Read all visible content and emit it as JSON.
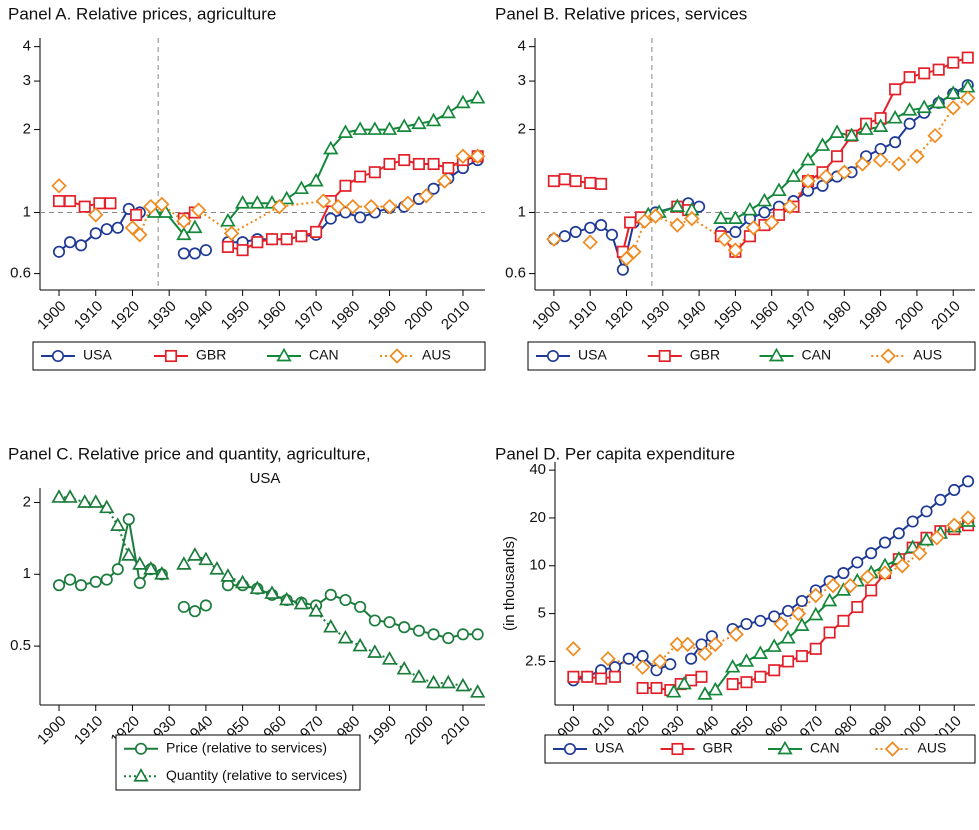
{
  "chart_data": [
    {
      "type": "line",
      "title": [
        "Panel A. Relative prices, agriculture"
      ],
      "ylog": true,
      "xlim": [
        1897,
        2016
      ],
      "ylim": [
        0.55,
        4.3
      ],
      "xticks": [
        1900,
        1910,
        1920,
        1930,
        1940,
        1950,
        1960,
        1970,
        1980,
        1990,
        2000,
        2010
      ],
      "yticks": [
        0.6,
        1,
        2,
        3,
        4
      ],
      "vline": 1927,
      "hline": 1,
      "legend": "bottom",
      "legend_columns": 4,
      "series": [
        {
          "name": "USA",
          "color": "#1f3a96",
          "marker": "circle",
          "line_style": "solid",
          "x": [
            1900,
            1903,
            1906,
            1910,
            1913,
            1916,
            1919,
            1922,
            1925,
            1934,
            1937,
            1940,
            1943,
            1946,
            1950,
            1954,
            1958,
            1962,
            1966,
            1970,
            1974,
            1978,
            1982,
            1986,
            1990,
            1994,
            1998,
            2002,
            2006,
            2010,
            2014
          ],
          "values": [
            0.72,
            0.78,
            0.76,
            0.84,
            0.87,
            0.88,
            1.03,
            1.0,
            null,
            0.71,
            0.71,
            0.73,
            null,
            0.78,
            0.78,
            0.8,
            0.8,
            0.8,
            0.82,
            0.83,
            0.95,
            1.0,
            0.96,
            1.0,
            1.04,
            1.05,
            1.12,
            1.22,
            1.33,
            1.45,
            1.55
          ]
        },
        {
          "name": "GBR",
          "color": "#e3202a",
          "marker": "square",
          "line_style": "solid",
          "x": [
            1900,
            1903,
            1907,
            1911,
            1914,
            1918,
            1921,
            1924,
            1927,
            1934,
            1937,
            1940,
            1946,
            1950,
            1954,
            1958,
            1962,
            1966,
            1970,
            1974,
            1978,
            1982,
            1986,
            1990,
            1994,
            1998,
            2002,
            2006,
            2010,
            2014
          ],
          "values": [
            1.1,
            1.1,
            1.05,
            1.08,
            1.08,
            null,
            0.98,
            null,
            null,
            0.95,
            1.0,
            null,
            0.75,
            0.73,
            0.78,
            0.8,
            0.8,
            0.82,
            0.85,
            1.1,
            1.25,
            1.35,
            1.4,
            1.5,
            1.55,
            1.5,
            1.5,
            1.45,
            1.55,
            1.6
          ]
        },
        {
          "name": "CAN",
          "color": "#14883a",
          "marker": "triangle",
          "line_style": "solid",
          "x": [
            1926,
            1929,
            1934,
            1937,
            1940,
            1946,
            1950,
            1954,
            1958,
            1962,
            1966,
            1970,
            1974,
            1978,
            1982,
            1986,
            1990,
            1994,
            1998,
            2002,
            2006,
            2010,
            2014
          ],
          "values": [
            1.0,
            1.0,
            0.83,
            0.88,
            null,
            0.93,
            1.08,
            1.08,
            1.08,
            1.12,
            1.22,
            1.3,
            1.7,
            1.95,
            2.0,
            2.0,
            2.0,
            2.05,
            2.1,
            2.15,
            2.3,
            2.5,
            2.6
          ]
        },
        {
          "name": "AUS",
          "color": "#f08a1e",
          "marker": "diamond",
          "line_style": "dotted",
          "x": [
            1900,
            1905,
            1910,
            1915,
            1920,
            1922,
            1925,
            1928,
            1934,
            1938,
            1947,
            1960,
            1972,
            1976,
            1980,
            1985,
            1990,
            1995,
            2000,
            2005,
            2010,
            2014
          ],
          "values": [
            1.25,
            null,
            0.98,
            null,
            0.88,
            0.83,
            1.05,
            1.07,
            0.93,
            1.02,
            0.84,
            1.05,
            1.1,
            1.05,
            1.05,
            1.05,
            1.05,
            1.08,
            1.15,
            1.3,
            1.6,
            1.6
          ]
        }
      ]
    },
    {
      "type": "line",
      "title": [
        "Panel B. Relative prices, services"
      ],
      "ylog": true,
      "xlim": [
        1897,
        2016
      ],
      "ylim": [
        0.55,
        4.3
      ],
      "xticks": [
        1900,
        1910,
        1920,
        1930,
        1940,
        1950,
        1960,
        1970,
        1980,
        1990,
        2000,
        2010
      ],
      "yticks": [
        0.6,
        1,
        2,
        3,
        4
      ],
      "vline": 1927,
      "hline": 1,
      "legend": "bottom",
      "legend_columns": 4,
      "series": [
        {
          "name": "USA",
          "color": "#1f3a96",
          "marker": "circle",
          "line_style": "solid",
          "x": [
            1900,
            1903,
            1906,
            1910,
            1913,
            1916,
            1919,
            1922,
            1925,
            1928,
            1934,
            1937,
            1940,
            1943,
            1946,
            1950,
            1954,
            1958,
            1962,
            1966,
            1970,
            1974,
            1978,
            1982,
            1986,
            1990,
            1994,
            1998,
            2002,
            2006,
            2010,
            2014
          ],
          "values": [
            0.8,
            0.82,
            0.85,
            0.88,
            0.9,
            0.83,
            0.62,
            0.92,
            0.95,
            1.0,
            1.05,
            1.08,
            1.05,
            null,
            0.85,
            0.85,
            0.95,
            1.0,
            1.05,
            1.1,
            1.2,
            1.25,
            1.35,
            1.4,
            1.6,
            1.7,
            1.8,
            2.1,
            2.3,
            2.5,
            2.7,
            2.9
          ]
        },
        {
          "name": "GBR",
          "color": "#e3202a",
          "marker": "square",
          "line_style": "solid",
          "x": [
            1900,
            1903,
            1906,
            1910,
            1913,
            1916,
            1919,
            1921,
            1924,
            1927,
            1934,
            1937,
            1940,
            1946,
            1950,
            1954,
            1958,
            1962,
            1966,
            1970,
            1974,
            1978,
            1982,
            1986,
            1990,
            1994,
            1998,
            2002,
            2006,
            2010,
            2014
          ],
          "values": [
            1.3,
            1.32,
            1.3,
            1.28,
            1.27,
            null,
            0.72,
            0.92,
            0.96,
            null,
            1.05,
            1.02,
            null,
            0.82,
            0.72,
            0.82,
            0.9,
            0.98,
            1.05,
            1.3,
            1.4,
            1.6,
            1.9,
            2.1,
            2.2,
            2.8,
            3.1,
            3.2,
            3.3,
            3.5,
            3.65
          ]
        },
        {
          "name": "CAN",
          "color": "#14883a",
          "marker": "triangle",
          "line_style": "solid",
          "x": [
            1926,
            1929,
            1934,
            1938,
            1941,
            1946,
            1950,
            1954,
            1958,
            1962,
            1966,
            1970,
            1974,
            1978,
            1982,
            1986,
            1990,
            1994,
            1998,
            2002,
            2006,
            2010,
            2014
          ],
          "values": [
            0.98,
            1.0,
            1.05,
            1.02,
            null,
            0.95,
            0.95,
            1.02,
            1.1,
            1.2,
            1.35,
            1.55,
            1.75,
            1.95,
            1.9,
            2.0,
            2.05,
            2.2,
            2.35,
            2.4,
            2.5,
            2.7,
            2.85
          ]
        },
        {
          "name": "AUS",
          "color": "#f08a1e",
          "marker": "diamond",
          "line_style": "dotted",
          "x": [
            1900,
            1905,
            1910,
            1915,
            1920,
            1922,
            1925,
            1928,
            1934,
            1938,
            1947,
            1950,
            1955,
            1960,
            1965,
            1970,
            1975,
            1980,
            1985,
            1990,
            1995,
            2000,
            2005,
            2010,
            2014
          ],
          "values": [
            0.8,
            null,
            0.78,
            null,
            0.68,
            0.72,
            0.93,
            0.97,
            0.9,
            0.95,
            0.8,
            0.73,
            0.88,
            0.92,
            1.05,
            1.3,
            1.35,
            1.4,
            1.5,
            1.55,
            1.5,
            1.6,
            1.9,
            2.4,
            2.6
          ]
        }
      ]
    },
    {
      "type": "line",
      "title": [
        "Panel C. Relative price and quantity, agriculture,",
        "USA"
      ],
      "ylog": true,
      "xlim": [
        1897,
        2016
      ],
      "ylim": [
        0.3,
        2.3
      ],
      "xticks": [
        1900,
        1910,
        1920,
        1930,
        1940,
        1950,
        1960,
        1970,
        1980,
        1990,
        2000,
        2010
      ],
      "yticks": [
        0.5,
        1,
        2
      ],
      "legend": "bottom",
      "legend_columns": 1,
      "series": [
        {
          "name": "Price (relative to services)",
          "color": "#1b7c3c",
          "marker": "circle",
          "line_style": "solid",
          "x": [
            1900,
            1903,
            1906,
            1910,
            1913,
            1916,
            1919,
            1922,
            1925,
            1928,
            1931,
            1934,
            1937,
            1940,
            1943,
            1946,
            1950,
            1954,
            1958,
            1962,
            1966,
            1970,
            1974,
            1978,
            1982,
            1986,
            1990,
            1994,
            1998,
            2002,
            2006,
            2010,
            2014
          ],
          "values": [
            0.9,
            0.95,
            0.9,
            0.93,
            0.95,
            1.05,
            1.7,
            0.92,
            1.05,
            1.0,
            null,
            0.73,
            0.7,
            0.74,
            null,
            0.9,
            0.9,
            0.87,
            0.82,
            0.78,
            0.76,
            0.74,
            0.82,
            0.78,
            0.73,
            0.64,
            0.63,
            0.6,
            0.58,
            0.56,
            0.54,
            0.56,
            0.56
          ]
        },
        {
          "name": "Quantity (relative to services)",
          "color": "#1b7c3c",
          "marker": "triangle",
          "line_style": "dotted",
          "x": [
            1900,
            1903,
            1907,
            1910,
            1913,
            1916,
            1919,
            1922,
            1925,
            1928,
            1931,
            1934,
            1937,
            1940,
            1943,
            1946,
            1950,
            1954,
            1958,
            1962,
            1966,
            1970,
            1974,
            1978,
            1982,
            1986,
            1990,
            1994,
            1998,
            2002,
            2006,
            2010,
            2014
          ],
          "values": [
            2.1,
            2.1,
            2.0,
            2.0,
            1.9,
            1.6,
            1.2,
            1.1,
            1.05,
            1.0,
            null,
            1.1,
            1.2,
            1.15,
            1.05,
            0.98,
            0.92,
            0.87,
            0.83,
            0.78,
            0.75,
            0.7,
            0.6,
            0.54,
            0.5,
            0.47,
            0.44,
            0.4,
            0.37,
            0.35,
            0.35,
            0.34,
            0.32
          ]
        }
      ]
    },
    {
      "type": "line",
      "title": [
        "Panel D. Per capita expenditure"
      ],
      "ylabel": "(in thousands)",
      "ylog": true,
      "xlim": [
        1897,
        2016
      ],
      "ylim": [
        1.45,
        45
      ],
      "xticks": [
        1900,
        1910,
        1920,
        1930,
        1940,
        1950,
        1960,
        1970,
        1980,
        1990,
        2000,
        2010
      ],
      "yticks": [
        2.5,
        5,
        10,
        20,
        40
      ],
      "legend": "bottom",
      "legend_columns": 4,
      "series": [
        {
          "name": "USA",
          "color": "#1f3a96",
          "marker": "circle",
          "line_style": "solid",
          "x": [
            1900,
            1904,
            1908,
            1912,
            1916,
            1920,
            1924,
            1928,
            1931,
            1934,
            1937,
            1940,
            1943,
            1946,
            1950,
            1954,
            1958,
            1962,
            1966,
            1970,
            1974,
            1978,
            1982,
            1986,
            1990,
            1994,
            1998,
            2002,
            2006,
            2010,
            2014
          ],
          "values": [
            1.9,
            2.0,
            2.2,
            2.3,
            2.6,
            2.7,
            2.2,
            2.4,
            null,
            2.6,
            3.2,
            3.6,
            null,
            4.0,
            4.3,
            4.5,
            4.8,
            5.2,
            6.0,
            7.0,
            8.0,
            9.0,
            10.5,
            12,
            14,
            16,
            19,
            22,
            26,
            30,
            34
          ]
        },
        {
          "name": "GBR",
          "color": "#e3202a",
          "marker": "square",
          "line_style": "solid",
          "x": [
            1900,
            1904,
            1908,
            1912,
            1916,
            1920,
            1924,
            1928,
            1931,
            1934,
            1937,
            1940,
            1946,
            1950,
            1954,
            1958,
            1962,
            1966,
            1970,
            1974,
            1978,
            1982,
            1986,
            1990,
            1994,
            1998,
            2002,
            2006,
            2010,
            2014
          ],
          "values": [
            2.0,
            2.0,
            1.95,
            2.0,
            null,
            1.7,
            1.7,
            1.65,
            1.8,
            1.9,
            2.0,
            null,
            1.8,
            1.85,
            2.0,
            2.2,
            2.5,
            2.7,
            3.0,
            3.8,
            4.5,
            5.5,
            7,
            9,
            11,
            13,
            15,
            16.5,
            17,
            18
          ]
        },
        {
          "name": "CAN",
          "color": "#14883a",
          "marker": "triangle",
          "line_style": "solid",
          "x": [
            1929,
            1932,
            1935,
            1938,
            1941,
            1946,
            1950,
            1954,
            1958,
            1962,
            1966,
            1970,
            1974,
            1978,
            1982,
            1986,
            1990,
            1994,
            1998,
            2002,
            2006,
            2010,
            2014
          ],
          "values": [
            1.6,
            1.8,
            null,
            1.55,
            1.65,
            2.3,
            2.5,
            2.8,
            3.1,
            3.5,
            4.2,
            4.9,
            6,
            7,
            8,
            9,
            10,
            11,
            13,
            14.5,
            16,
            17.5,
            19
          ]
        },
        {
          "name": "AUS",
          "color": "#f08a1e",
          "marker": "diamond",
          "line_style": "dotted",
          "x": [
            1900,
            1905,
            1910,
            1920,
            1925,
            1930,
            1933,
            1938,
            1941,
            1947,
            1955,
            1960,
            1965,
            1970,
            1975,
            1980,
            1985,
            1990,
            1995,
            2000,
            2005,
            2010,
            2014
          ],
          "values": [
            3.0,
            null,
            2.6,
            2.3,
            2.5,
            3.2,
            3.2,
            2.8,
            3.2,
            3.7,
            null,
            4.3,
            5.0,
            6.5,
            7.5,
            7.5,
            8.5,
            9,
            10,
            12,
            15,
            18,
            20
          ]
        }
      ]
    }
  ]
}
